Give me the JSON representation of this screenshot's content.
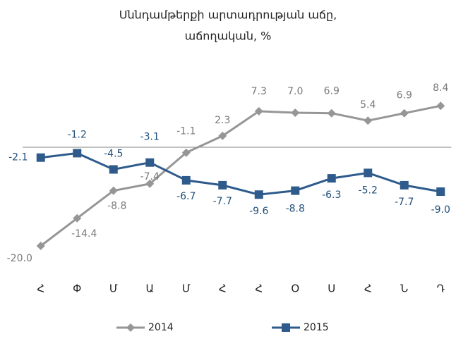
{
  "chart_data": {
    "type": "line",
    "title": [
      "Սննդամթերքի արտադրության աճը,",
      "աճողական, %"
    ],
    "categories": [
      "Հ",
      "Փ",
      "Մ",
      "Ա",
      "Մ",
      "Հ",
      "Հ",
      "Օ",
      "Ս",
      "Հ",
      "Ն",
      "Դ"
    ],
    "series": [
      {
        "name": "2014",
        "color": "#969696",
        "marker": "diamond",
        "values": [
          -20.0,
          -14.4,
          -8.8,
          -7.4,
          -1.1,
          2.3,
          7.3,
          7.0,
          6.9,
          5.4,
          6.9,
          8.4
        ],
        "value_labels": [
          "-20.0",
          "-14.4",
          "-8.8",
          "-7.4",
          "-1.1",
          "2.3",
          "7.3",
          "7.0",
          "6.9",
          "5.4",
          "6.9",
          "8.4"
        ]
      },
      {
        "name": "2015",
        "color": "#2e5b8c",
        "marker": "square",
        "values": [
          -2.1,
          -1.2,
          -4.5,
          -3.1,
          -6.7,
          -7.7,
          -9.6,
          -8.8,
          -6.3,
          -5.2,
          -7.7,
          -9.0
        ],
        "value_labels": [
          "-2.1",
          "-1.2",
          "-4.5",
          "-3.1",
          "-6.7",
          "-7.7",
          "-9.6",
          "-8.8",
          "-6.3",
          "-5.2",
          "-7.7",
          "-9.0"
        ]
      }
    ],
    "ylim": [
      -22,
      12
    ],
    "legend": "bottom"
  }
}
